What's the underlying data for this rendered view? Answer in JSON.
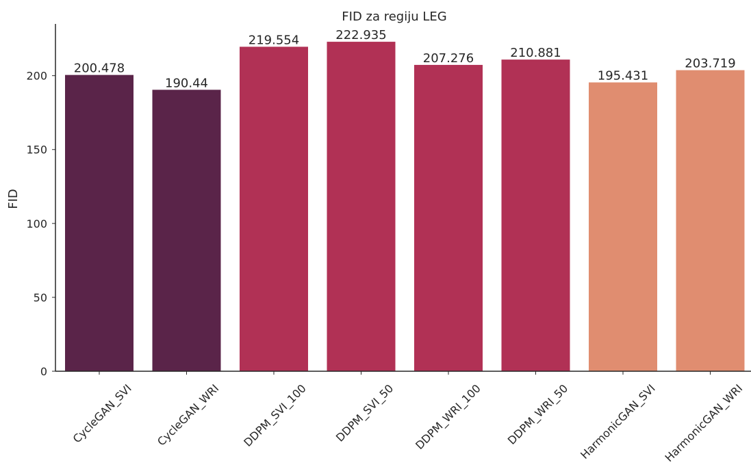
{
  "chart_data": {
    "type": "bar",
    "title": "FID za regiju LEG",
    "xlabel": "",
    "ylabel": "FID",
    "ylim": [
      0,
      235
    ],
    "yticks": [
      0,
      50,
      100,
      150,
      200
    ],
    "ytick_labels": [
      "0",
      "50",
      "100",
      "150",
      "200"
    ],
    "grid": false,
    "categories": [
      "CycleGAN_SVI",
      "CycleGAN_WRI",
      "DDPM_SVI_100",
      "DDPM_SVI_50",
      "DDPM_WRI_100",
      "DDPM_WRI_50",
      "HarmonicGAN_SVI",
      "HarmonicGAN_WRI"
    ],
    "values": [
      200.478,
      190.44,
      219.554,
      222.935,
      207.276,
      210.881,
      195.431,
      203.719
    ],
    "value_labels": [
      "200.478",
      "190.44",
      "219.554",
      "222.935",
      "207.276",
      "210.881",
      "195.431",
      "203.719"
    ],
    "colors": [
      "#5a2449",
      "#5a2449",
      "#b13155",
      "#b13155",
      "#b13155",
      "#b13155",
      "#e08d70",
      "#e08d70"
    ]
  }
}
